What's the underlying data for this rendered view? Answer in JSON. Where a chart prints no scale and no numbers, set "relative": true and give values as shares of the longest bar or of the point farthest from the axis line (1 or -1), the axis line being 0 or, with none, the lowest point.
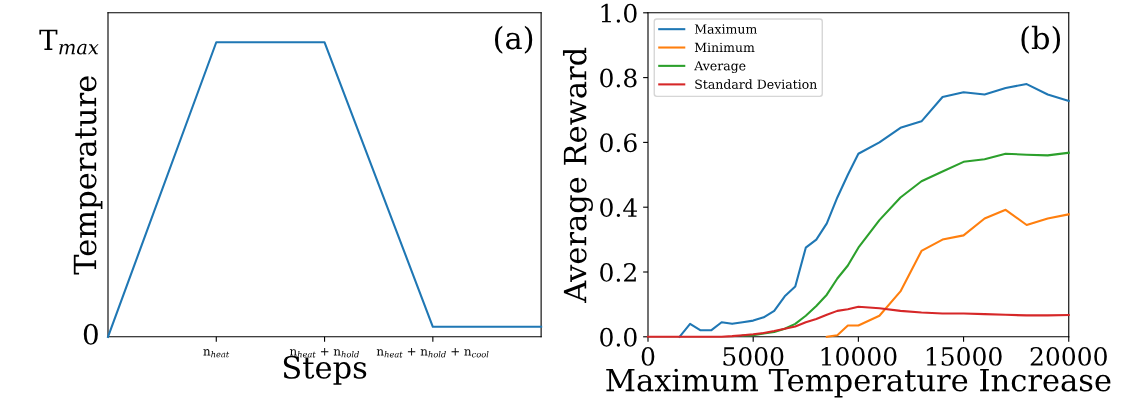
{
  "chart_data": [
    {
      "type": "line",
      "xlabel": "Steps",
      "ylabel": "Temperature",
      "annotations": [
        "(a)",
        "T$_{max}$",
        "0"
      ],
      "grid": false,
      "legend": false,
      "marker": "none",
      "line_style": "solid",
      "relative": true,
      "categories": [
        null,
        "n$_{heat}$",
        "n$_{heat}$ + n$_{hold}$",
        "n$_{heat}$ + n$_{hold}$ + n$_{cool}$",
        null
      ],
      "series": [
        {
          "color": "#1f77b4",
          "values": [
            0,
            1,
            1,
            0.034,
            0.034
          ]
        }
      ]
    },
    {
      "type": "line",
      "xlabel": "Maximum Temperature Increase",
      "ylabel": "Average Reward",
      "annotations": [
        "(b)"
      ],
      "grid": false,
      "legend": "top left",
      "marker": "none",
      "line_style": "solid",
      "xlim": [
        0,
        20000
      ],
      "ylim": [
        0,
        1.0
      ],
      "xticks": [
        0,
        5000,
        10000,
        15000,
        20000
      ],
      "yticks": [
        {
          "value": 0,
          "label": "0.0"
        },
        {
          "value": 0.2,
          "label": "0.2"
        },
        {
          "value": 0.4,
          "label": "0.4"
        },
        {
          "value": 0.6,
          "label": "0.6"
        },
        {
          "value": 0.8,
          "label": "0.8"
        },
        {
          "value": 1.0,
          "label": "1.0"
        }
      ],
      "x": [
        0,
        500,
        1000,
        1500,
        2000,
        2500,
        3000,
        3500,
        4000,
        4500,
        5000,
        5500,
        6000,
        6500,
        7000,
        7500,
        8000,
        8500,
        9000,
        9500,
        10000,
        11000,
        12000,
        13000,
        14000,
        15000,
        16000,
        17000,
        18000,
        19000,
        20000
      ],
      "series": [
        {
          "name": "Maximum",
          "color": "#1f77b4",
          "values": [
            null,
            null,
            null,
            0,
            0.04,
            0.02,
            0.02,
            0.045,
            0.04,
            0.045,
            0.05,
            0.06,
            0.08,
            0.125,
            0.155,
            0.275,
            0.3,
            0.35,
            0.43,
            0.5,
            0.565,
            0.6,
            0.645,
            0.665,
            0.74,
            0.755,
            0.748,
            0.768,
            0.78,
            0.748,
            0.728
          ]
        },
        {
          "name": "Minimum",
          "color": "#ff7f0e",
          "values": [
            null,
            null,
            null,
            null,
            null,
            null,
            null,
            null,
            null,
            null,
            null,
            null,
            null,
            null,
            null,
            null,
            null,
            0,
            0.005,
            0.035,
            0.035,
            0.065,
            0.14,
            0.265,
            0.3,
            0.313,
            0.365,
            0.392,
            0.345,
            0.365,
            0.378
          ]
        },
        {
          "name": "Average",
          "color": "#2ca02c",
          "values": [
            null,
            null,
            null,
            null,
            null,
            null,
            null,
            null,
            null,
            0.004,
            0.005,
            0.01,
            0.015,
            0.025,
            0.04,
            0.065,
            0.095,
            0.13,
            0.18,
            0.22,
            0.275,
            0.36,
            0.43,
            0.48,
            0.51,
            0.54,
            0.548,
            0.565,
            0.562,
            0.56,
            0.568
          ]
        },
        {
          "name": "Standard Deviation",
          "color": "#d62728",
          "values": [
            0,
            0,
            0,
            0,
            0,
            0,
            0,
            0,
            0.002,
            0.005,
            0.008,
            0.012,
            0.018,
            0.025,
            0.032,
            0.045,
            0.055,
            0.068,
            0.08,
            0.085,
            0.093,
            0.088,
            0.08,
            0.075,
            0.072,
            0.072,
            0.07,
            0.068,
            0.066,
            0.066,
            0.067
          ]
        }
      ]
    }
  ]
}
